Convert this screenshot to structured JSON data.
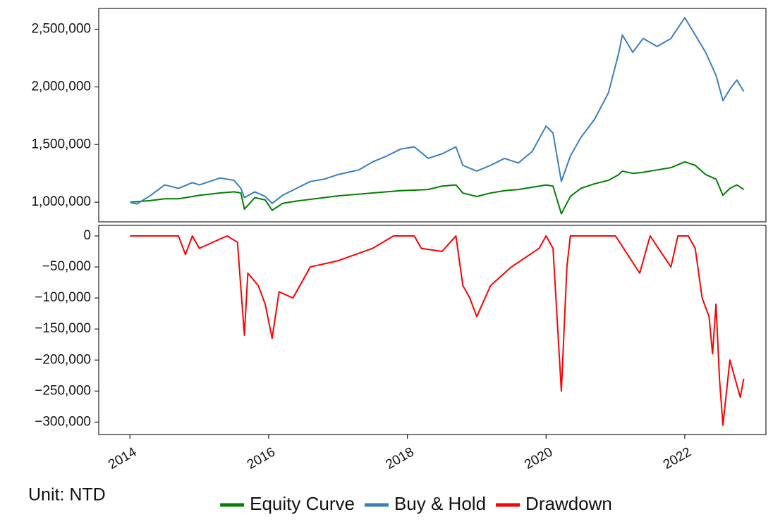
{
  "chart_data": [
    {
      "type": "line",
      "annotation": "Unit: NTD",
      "legend": "bottom",
      "x": [
        2014.0,
        2014.1,
        2014.3,
        2014.5,
        2014.7,
        2014.9,
        2015.0,
        2015.3,
        2015.5,
        2015.6,
        2015.65,
        2015.8,
        2015.95,
        2016.05,
        2016.2,
        2016.4,
        2016.6,
        2016.8,
        2017.0,
        2017.3,
        2017.5,
        2017.7,
        2017.9,
        2018.1,
        2018.3,
        2018.5,
        2018.7,
        2018.8,
        2019.0,
        2019.2,
        2019.4,
        2019.6,
        2019.8,
        2020.0,
        2020.1,
        2020.22,
        2020.35,
        2020.5,
        2020.7,
        2020.9,
        2021.05,
        2021.1,
        2021.25,
        2021.4,
        2021.6,
        2021.8,
        2022.0,
        2022.15,
        2022.3,
        2022.45,
        2022.55,
        2022.65,
        2022.75,
        2022.85
      ],
      "series": [
        {
          "name": "Equity Curve",
          "color": "#008000",
          "values": [
            1000000,
            1005000,
            1015000,
            1030000,
            1030000,
            1050000,
            1060000,
            1080000,
            1090000,
            1080000,
            940000,
            1040000,
            1020000,
            930000,
            990000,
            1010000,
            1025000,
            1040000,
            1055000,
            1070000,
            1080000,
            1090000,
            1100000,
            1105000,
            1110000,
            1140000,
            1150000,
            1080000,
            1050000,
            1080000,
            1100000,
            1110000,
            1130000,
            1150000,
            1140000,
            900000,
            1050000,
            1120000,
            1160000,
            1190000,
            1240000,
            1270000,
            1250000,
            1260000,
            1280000,
            1300000,
            1350000,
            1320000,
            1240000,
            1200000,
            1060000,
            1120000,
            1150000,
            1110000
          ]
        },
        {
          "name": "Buy & Hold",
          "color": "#3a7fbd",
          "values": [
            1000000,
            985000,
            1060000,
            1150000,
            1120000,
            1170000,
            1150000,
            1210000,
            1190000,
            1120000,
            1040000,
            1090000,
            1050000,
            990000,
            1060000,
            1120000,
            1180000,
            1200000,
            1240000,
            1280000,
            1350000,
            1400000,
            1460000,
            1480000,
            1380000,
            1420000,
            1480000,
            1320000,
            1270000,
            1320000,
            1380000,
            1340000,
            1440000,
            1660000,
            1600000,
            1180000,
            1400000,
            1560000,
            1720000,
            1950000,
            2300000,
            2450000,
            2300000,
            2420000,
            2350000,
            2420000,
            2600000,
            2450000,
            2300000,
            2100000,
            1880000,
            1980000,
            2060000,
            1960000
          ]
        }
      ],
      "xlim": [
        2013.55,
        2023.17
      ],
      "ylim": [
        830000,
        2680000
      ],
      "yticks": [
        {
          "value": 1000000,
          "label": "1,000,000"
        },
        {
          "value": 1500000,
          "label": "1,500,000"
        },
        {
          "value": 2000000,
          "label": "2,000,000"
        },
        {
          "value": 2500000,
          "label": "2,500,000"
        }
      ]
    },
    {
      "type": "line",
      "x": [
        2014.0,
        2014.7,
        2014.8,
        2014.9,
        2015.0,
        2015.4,
        2015.55,
        2015.65,
        2015.7,
        2015.85,
        2015.95,
        2016.05,
        2016.15,
        2016.35,
        2016.6,
        2017.0,
        2017.5,
        2017.8,
        2018.1,
        2018.2,
        2018.5,
        2018.7,
        2018.8,
        2018.9,
        2019.0,
        2019.2,
        2019.5,
        2019.9,
        2020.0,
        2020.1,
        2020.22,
        2020.3,
        2020.35,
        2021.0,
        2021.35,
        2021.5,
        2021.8,
        2021.9,
        2022.05,
        2022.15,
        2022.25,
        2022.35,
        2022.4,
        2022.45,
        2022.5,
        2022.55,
        2022.65,
        2022.8,
        2022.85
      ],
      "series": [
        {
          "name": "Drawdown",
          "color": "#ff0000",
          "values": [
            0,
            0,
            -30000,
            0,
            -20000,
            0,
            -10000,
            -160000,
            -60000,
            -80000,
            -110000,
            -165000,
            -90000,
            -100000,
            -50000,
            -40000,
            -20000,
            0,
            0,
            -20000,
            -25000,
            0,
            -80000,
            -100000,
            -130000,
            -80000,
            -50000,
            -20000,
            0,
            -20000,
            -250000,
            -50000,
            0,
            0,
            -60000,
            0,
            -50000,
            0,
            0,
            -20000,
            -100000,
            -130000,
            -190000,
            -110000,
            -230000,
            -305000,
            -200000,
            -260000,
            -230000
          ]
        }
      ],
      "xlim": [
        2013.55,
        2023.17
      ],
      "xticks": [
        2014,
        2016,
        2018,
        2020,
        2022
      ],
      "ylim": [
        -320000,
        17000
      ],
      "yticks": [
        {
          "value": -300000,
          "label": "−300,000"
        },
        {
          "value": -250000,
          "label": "−250,000"
        },
        {
          "value": -200000,
          "label": "−200,000"
        },
        {
          "value": -150000,
          "label": "−150,000"
        },
        {
          "value": -100000,
          "label": "−100,000"
        },
        {
          "value": -50000,
          "label": "−50,000"
        },
        0
      ]
    }
  ]
}
